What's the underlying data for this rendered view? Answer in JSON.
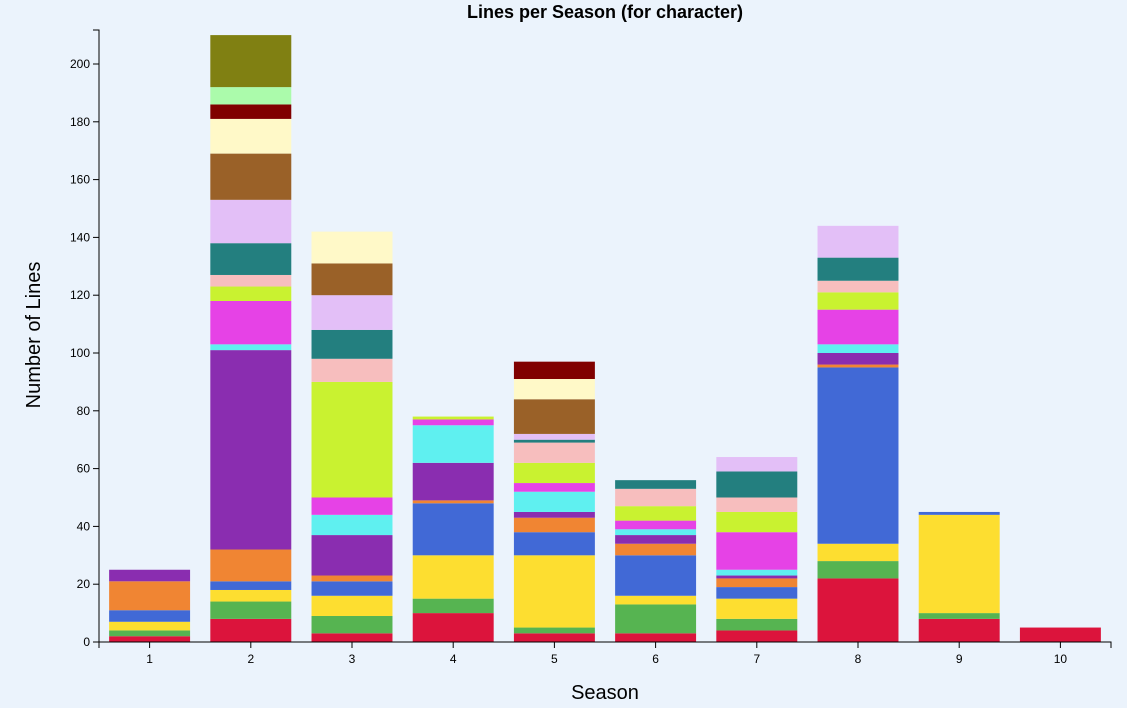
{
  "chart_data": {
    "type": "bar",
    "stacked": true,
    "title": "Lines per Season (for character)",
    "xlabel": "Season",
    "ylabel": "Number of Lines",
    "ylim": [
      0,
      210
    ],
    "yticks": [
      0,
      20,
      40,
      60,
      80,
      100,
      120,
      140,
      160,
      180,
      200
    ],
    "grid": false,
    "legend": "none",
    "categories": [
      "1",
      "2",
      "3",
      "4",
      "5",
      "6",
      "7",
      "8",
      "9",
      "10"
    ],
    "colors": [
      "#dc143c",
      "#56b451",
      "#fdde30",
      "#4169d6",
      "#f08533",
      "#8a2db0",
      "#5ff0f0",
      "#e642e6",
      "#c9f230",
      "#f7bebe",
      "#237f7f",
      "#e3bff7",
      "#9a6128",
      "#fff9c8",
      "#800000",
      "#abfbab",
      "#808012"
    ],
    "series": [
      {
        "values": [
          2,
          8,
          3,
          10,
          3,
          3,
          4,
          22,
          8,
          5
        ]
      },
      {
        "values": [
          2,
          6,
          6,
          5,
          2,
          10,
          4,
          6,
          2,
          0
        ]
      },
      {
        "values": [
          3,
          4,
          7,
          15,
          25,
          3,
          7,
          6,
          34,
          0
        ]
      },
      {
        "values": [
          4,
          3,
          5,
          18,
          8,
          14,
          4,
          61,
          1,
          0
        ]
      },
      {
        "values": [
          10,
          11,
          2,
          1,
          5,
          4,
          3,
          1,
          0,
          0
        ]
      },
      {
        "values": [
          4,
          69,
          14,
          13,
          2,
          3,
          1,
          4,
          0,
          0
        ]
      },
      {
        "values": [
          0,
          2,
          7,
          13,
          7,
          2,
          2,
          3,
          0,
          0
        ]
      },
      {
        "values": [
          0,
          15,
          6,
          2,
          3,
          3,
          13,
          12,
          0,
          0
        ]
      },
      {
        "values": [
          0,
          5,
          40,
          1,
          7,
          5,
          7,
          6,
          0,
          0
        ]
      },
      {
        "values": [
          0,
          4,
          8,
          0,
          7,
          6,
          5,
          4,
          0,
          0
        ]
      },
      {
        "values": [
          0,
          11,
          10,
          0,
          1,
          3,
          9,
          8,
          0,
          0
        ]
      },
      {
        "values": [
          0,
          15,
          12,
          0,
          2,
          0,
          5,
          11,
          0,
          0
        ]
      },
      {
        "values": [
          0,
          16,
          11,
          0,
          12,
          0,
          0,
          0,
          0,
          0
        ]
      },
      {
        "values": [
          0,
          12,
          11,
          0,
          7,
          0,
          0,
          0,
          0,
          0
        ]
      },
      {
        "values": [
          0,
          5,
          0,
          0,
          6,
          0,
          0,
          0,
          0,
          0
        ]
      },
      {
        "values": [
          0,
          6,
          0,
          0,
          0,
          0,
          0,
          0,
          0,
          0
        ]
      },
      {
        "values": [
          0,
          18,
          0,
          0,
          0,
          0,
          0,
          0,
          0,
          0
        ]
      }
    ]
  }
}
